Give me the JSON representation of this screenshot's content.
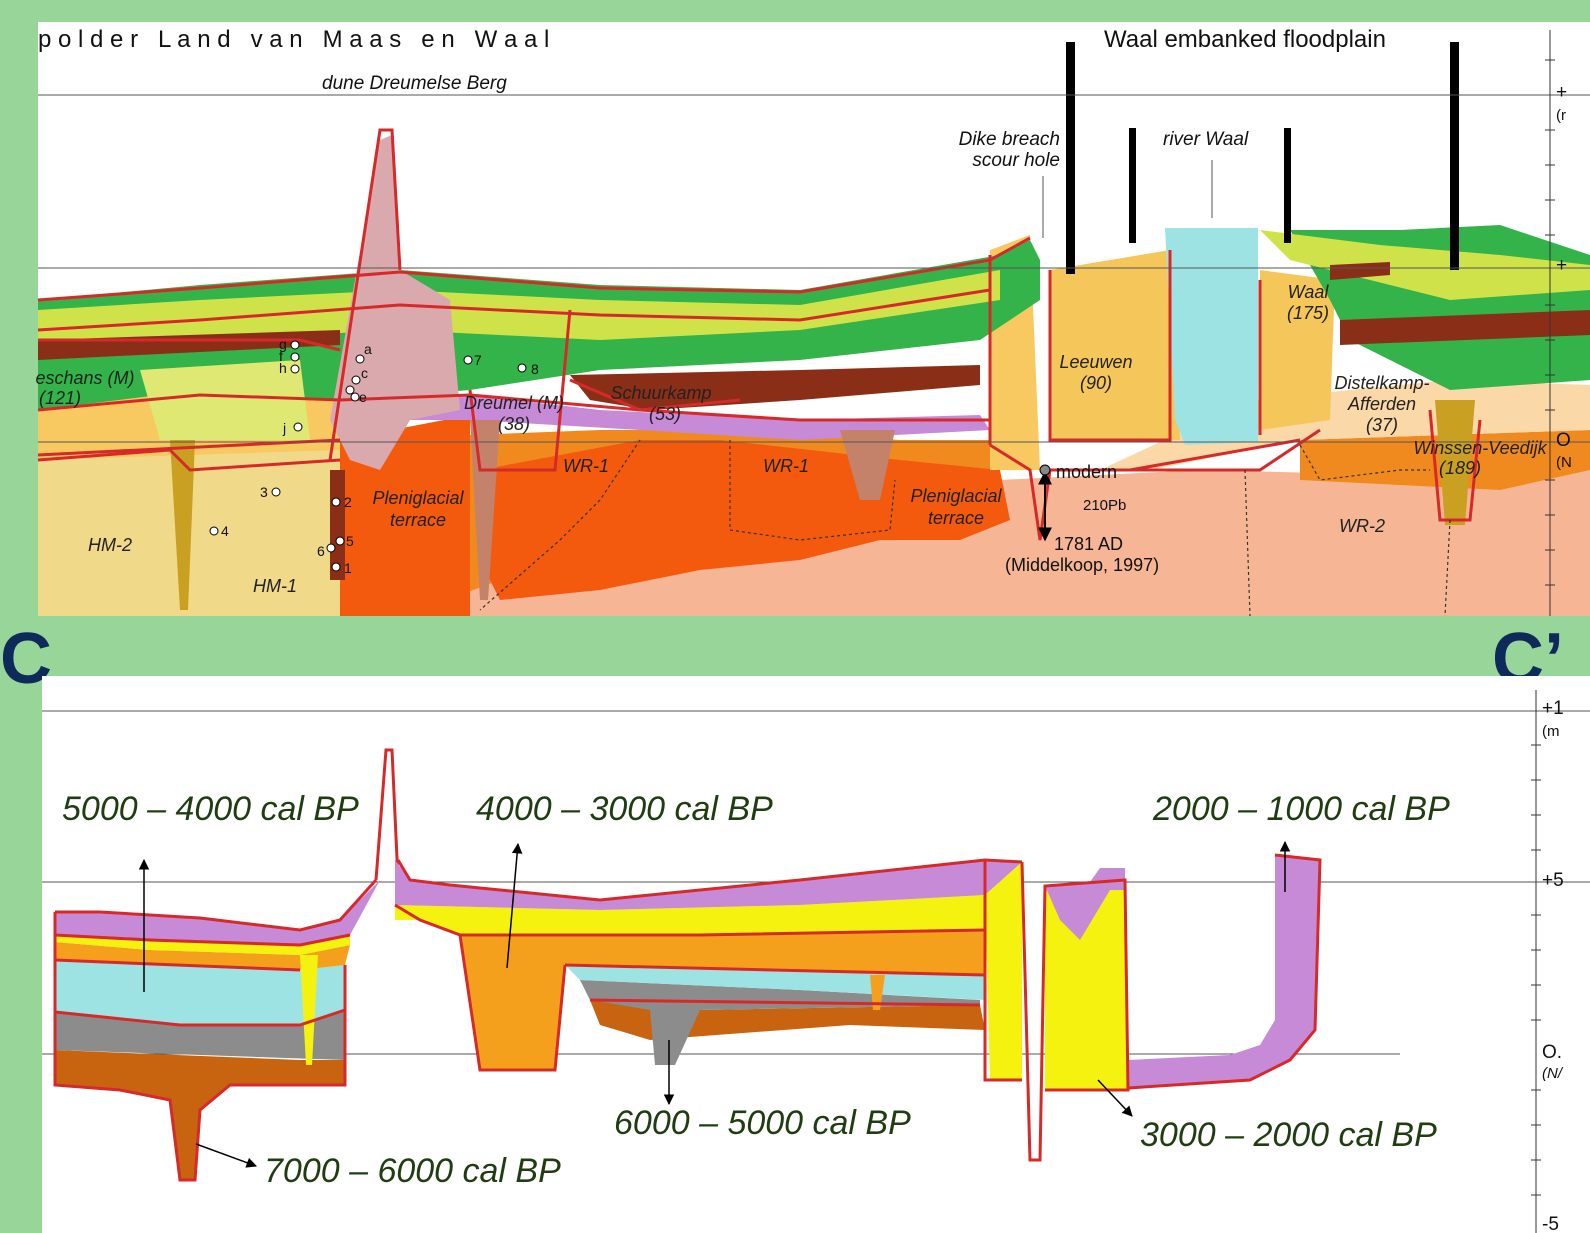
{
  "colors": {
    "frame": "#98d598",
    "navy": "#0d2a5a",
    "red_outline": "#d62a2a",
    "green": "#33b34a",
    "lime": "#cfe24a",
    "yellow_light": "#eef08a",
    "orange": "#f08a1f",
    "orange_dark": "#f35a0d",
    "salmon": "#f6b695",
    "brown": "#8b2e17",
    "purple": "#c78ad6",
    "pink": "#d9a9ad",
    "cyan": "#9ee3e3",
    "gray": "#8c8c8c",
    "caramel": "#c8630f",
    "yellow_bright": "#f5f20f",
    "orange_band": "#f5a01d",
    "time_text": "#1f3d10"
  },
  "top_panel": {
    "title_left": "p o l d e r   L a n d   v a n   M a a s   e n   W a a l",
    "title_right": "Waal embanked floodplain",
    "dune_label": "dune Dreumelse Berg",
    "dike_breach_label": [
      "Dike breach",
      "scour hole"
    ],
    "river_label": "river Waal",
    "axis_labels": [
      "+",
      "(r",
      "+",
      "O",
      "(N"
    ],
    "units": [
      {
        "name": "eschans (M)",
        "num": "(121)"
      },
      {
        "name": "Dreumel (M)",
        "num": "(38)"
      },
      {
        "name": "Schuurkamp",
        "num": "(53)"
      },
      {
        "name": "Leeuwen",
        "num": "(90)"
      },
      {
        "name": "Waal",
        "num": "(175)"
      },
      {
        "name": "Distelkamp-",
        "num": "Afferden"
      },
      {
        "name": "(37)",
        "num": ""
      },
      {
        "name": "Winssen-Veedijk",
        "num": "(189)"
      }
    ],
    "terrain_labels": [
      "HM-2",
      "HM-1",
      "Pleniglacial",
      "terrace",
      "WR-1",
      "WR-1",
      "Pleniglacial",
      "terrace",
      "WR-2"
    ],
    "dating": [
      "modern",
      "210Pb",
      "1781 AD",
      "(Middelkoop, 1997)"
    ],
    "samples_left": [
      "g",
      "f",
      "h",
      "i",
      "j",
      "3",
      "4",
      "6",
      "5",
      "1",
      "2",
      "a",
      "c",
      "b",
      "d",
      "e",
      "7",
      "8"
    ]
  },
  "section_labels": {
    "left": "C",
    "right": "C’"
  },
  "bottom_panel": {
    "axis_labels": [
      "+1",
      "(m",
      "+5",
      "O.",
      "(N/",
      "-5"
    ],
    "periods": [
      {
        "label": "5000 – 4000 cal BP"
      },
      {
        "label": "4000 – 3000 cal BP"
      },
      {
        "label": "2000 – 1000 cal BP"
      },
      {
        "label": "6000 – 5000 cal BP"
      },
      {
        "label": "3000 – 2000 cal BP"
      },
      {
        "label": "7000 – 6000 cal BP"
      }
    ]
  }
}
